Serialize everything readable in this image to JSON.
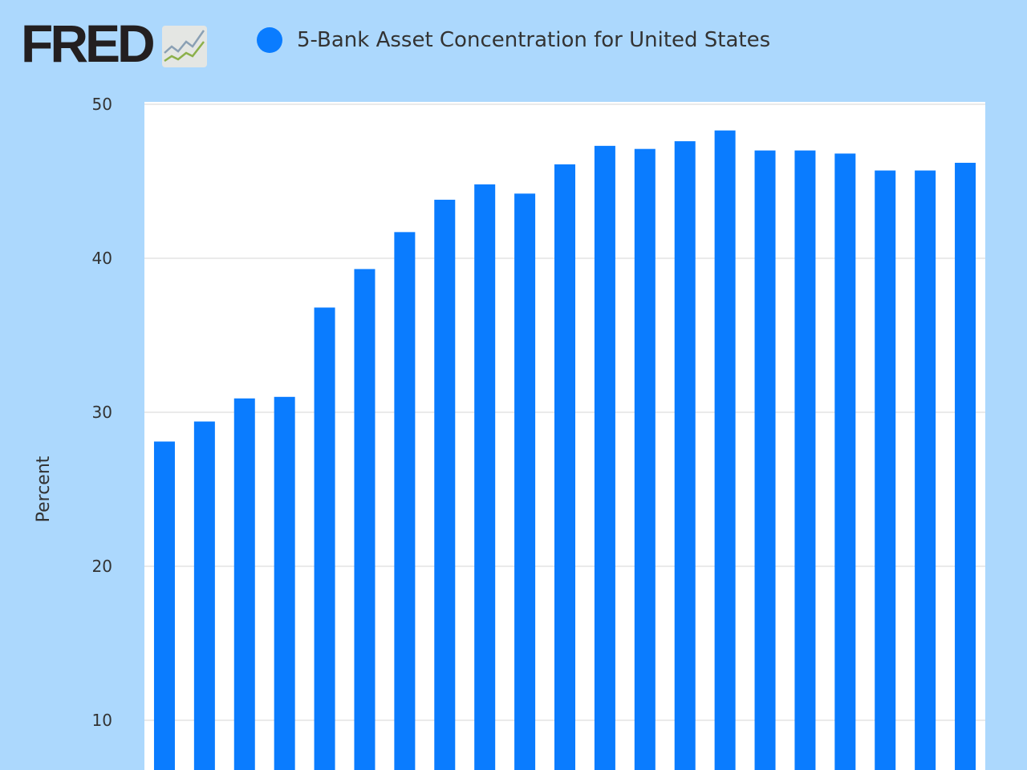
{
  "logo": "FRED",
  "chart_data": {
    "type": "bar",
    "title": "",
    "legend": [
      {
        "name": "5-Bank Asset Concentration for United States",
        "color": "#0a7cff"
      }
    ],
    "legend_placement": "top-left",
    "ylabel": "Percent",
    "xlabel": "",
    "ylim": [
      0,
      50
    ],
    "yticks": [
      "10",
      "20",
      "30",
      "40",
      "50"
    ],
    "grid": true,
    "series": [
      {
        "name": "5-Bank Asset Concentration for United States",
        "color": "#0a7cff",
        "values": [
          28.1,
          29.4,
          30.9,
          31.0,
          36.8,
          39.3,
          41.7,
          43.8,
          44.8,
          44.2,
          46.1,
          47.3,
          47.1,
          47.6,
          48.3,
          47.0,
          47.0,
          46.8,
          45.7,
          45.7,
          46.2
        ]
      }
    ]
  }
}
